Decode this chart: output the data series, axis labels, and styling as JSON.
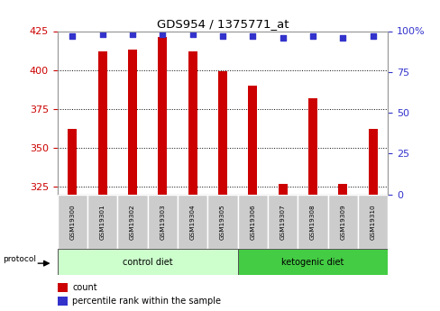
{
  "title": "GDS954 / 1375771_at",
  "samples": [
    "GSM19300",
    "GSM19301",
    "GSM19302",
    "GSM19303",
    "GSM19304",
    "GSM19305",
    "GSM19306",
    "GSM19307",
    "GSM19308",
    "GSM19309",
    "GSM19310"
  ],
  "counts": [
    362,
    412,
    413,
    421,
    412,
    399,
    390,
    327,
    382,
    327,
    362
  ],
  "percentile_ranks": [
    97,
    98,
    98,
    98,
    98,
    97,
    97,
    96,
    97,
    96,
    97
  ],
  "ylim_left": [
    320,
    425
  ],
  "ylim_right": [
    0,
    100
  ],
  "yticks_left": [
    325,
    350,
    375,
    400,
    425
  ],
  "yticks_right": [
    0,
    25,
    50,
    75,
    100
  ],
  "bar_color": "#cc0000",
  "dot_color": "#3333cc",
  "bar_bottom": 320,
  "groups": [
    {
      "label": "control diet",
      "start": 0,
      "end": 5,
      "color": "#ccffcc"
    },
    {
      "label": "ketogenic diet",
      "start": 6,
      "end": 10,
      "color": "#44cc44"
    }
  ],
  "protocol_label": "protocol",
  "background_color": "#ffffff",
  "tick_label_color_left": "#cc0000",
  "tick_label_color_right": "#3333cc",
  "sample_bg_color": "#cccccc",
  "legend_count_color": "#cc0000",
  "legend_pct_color": "#3333cc"
}
